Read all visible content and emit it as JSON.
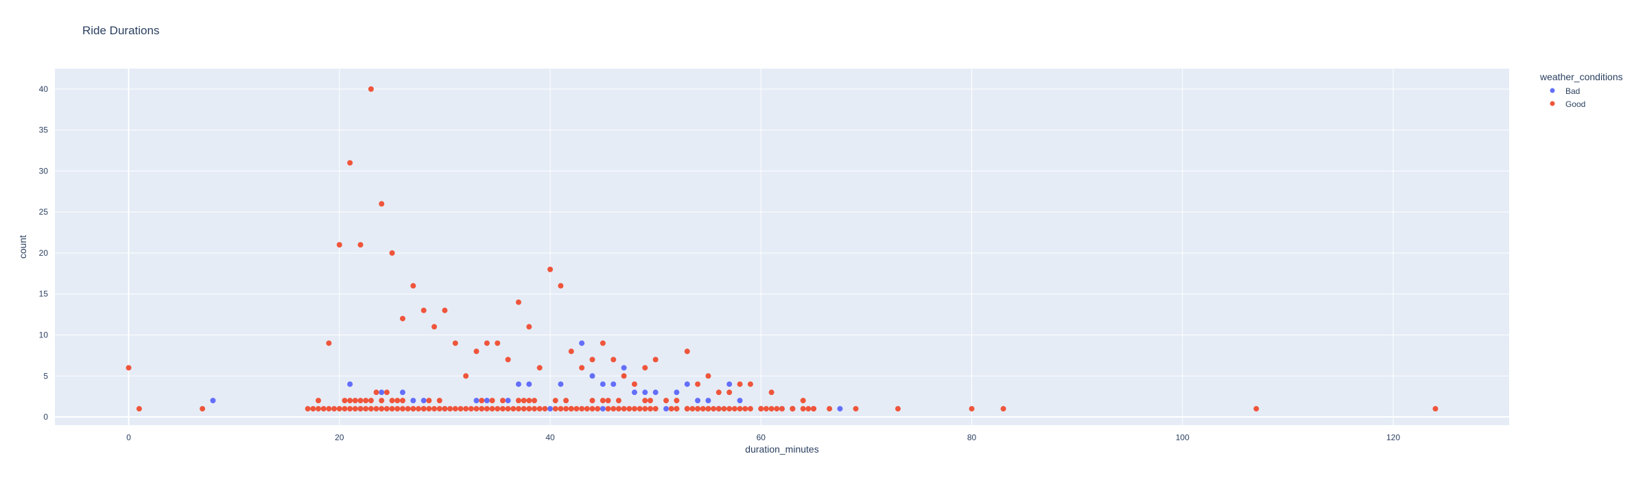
{
  "chart_data": {
    "type": "scatter",
    "title": "Ride Durations",
    "xlabel": "duration_minutes",
    "ylabel": "count",
    "xlim": [
      -7,
      131
    ],
    "ylim": [
      -1,
      42.5
    ],
    "x_ticks": [
      0,
      20,
      40,
      60,
      80,
      100,
      120
    ],
    "y_ticks": [
      0,
      5,
      10,
      15,
      20,
      25,
      30,
      35,
      40
    ],
    "grid": true,
    "legend": {
      "title": "weather_conditions",
      "placement": "top-right"
    },
    "colors": {
      "Bad": "#636efa",
      "Good": "#EF553B",
      "plot_bg": "#E5ECF6",
      "grid": "#ffffff",
      "text": "#2a3f5f"
    },
    "series": [
      {
        "name": "Bad",
        "points": [
          [
            8,
            2
          ],
          [
            21,
            4
          ],
          [
            22,
            1
          ],
          [
            24,
            3
          ],
          [
            26,
            3
          ],
          [
            27,
            2
          ],
          [
            28,
            2
          ],
          [
            30,
            1
          ],
          [
            33,
            2
          ],
          [
            34,
            2
          ],
          [
            36,
            2
          ],
          [
            37,
            4
          ],
          [
            38,
            4
          ],
          [
            41,
            4
          ],
          [
            43,
            9
          ],
          [
            44,
            5
          ],
          [
            45,
            4
          ],
          [
            46,
            4
          ],
          [
            47,
            6
          ],
          [
            48,
            3
          ],
          [
            49,
            3
          ],
          [
            50,
            3
          ],
          [
            52,
            3
          ],
          [
            53,
            4
          ],
          [
            54,
            2
          ],
          [
            55,
            2
          ],
          [
            56,
            1
          ],
          [
            57,
            4
          ],
          [
            58,
            2
          ],
          [
            62,
            1
          ],
          [
            67.5,
            1
          ],
          [
            40,
            1
          ],
          [
            51,
            1
          ],
          [
            45,
            1
          ]
        ]
      },
      {
        "name": "Good",
        "points": [
          [
            0,
            6
          ],
          [
            1,
            1
          ],
          [
            7,
            1
          ],
          [
            17,
            1
          ],
          [
            18,
            2
          ],
          [
            19,
            9
          ],
          [
            20,
            21
          ],
          [
            20.5,
            2
          ],
          [
            21,
            31
          ],
          [
            21.5,
            2
          ],
          [
            22,
            21
          ],
          [
            22.5,
            2
          ],
          [
            23,
            40
          ],
          [
            23.5,
            3
          ],
          [
            24,
            26
          ],
          [
            24.5,
            3
          ],
          [
            25,
            20
          ],
          [
            25.5,
            2
          ],
          [
            26,
            12
          ],
          [
            27,
            16
          ],
          [
            28,
            13
          ],
          [
            28.5,
            2
          ],
          [
            29,
            11
          ],
          [
            29.5,
            2
          ],
          [
            30,
            13
          ],
          [
            31,
            9
          ],
          [
            32,
            5
          ],
          [
            33,
            8
          ],
          [
            33.5,
            2
          ],
          [
            34,
            9
          ],
          [
            35,
            9
          ],
          [
            35.5,
            2
          ],
          [
            36,
            7
          ],
          [
            37,
            14
          ],
          [
            37.5,
            2
          ],
          [
            38,
            11
          ],
          [
            38.5,
            2
          ],
          [
            39,
            6
          ],
          [
            40,
            18
          ],
          [
            40.5,
            2
          ],
          [
            41,
            16
          ],
          [
            41.5,
            2
          ],
          [
            42,
            8
          ],
          [
            43,
            6
          ],
          [
            44,
            7
          ],
          [
            45,
            9
          ],
          [
            45.5,
            2
          ],
          [
            46,
            7
          ],
          [
            46.5,
            2
          ],
          [
            47,
            5
          ],
          [
            48,
            4
          ],
          [
            49,
            6
          ],
          [
            49.5,
            2
          ],
          [
            50,
            7
          ],
          [
            51,
            2
          ],
          [
            52,
            2
          ],
          [
            53,
            8
          ],
          [
            54,
            4
          ],
          [
            55,
            5
          ],
          [
            56,
            3
          ],
          [
            57,
            3
          ],
          [
            58,
            4
          ],
          [
            59,
            4
          ],
          [
            61,
            3
          ],
          [
            62,
            1
          ],
          [
            63,
            1
          ],
          [
            64,
            2
          ],
          [
            65,
            1
          ],
          [
            66.5,
            1
          ],
          [
            69,
            1
          ],
          [
            73,
            1
          ],
          [
            80,
            1
          ],
          [
            83,
            1
          ],
          [
            107,
            1
          ],
          [
            124,
            1
          ],
          [
            17.5,
            1
          ],
          [
            18,
            1
          ],
          [
            18.5,
            1
          ],
          [
            19,
            1
          ],
          [
            19.5,
            1
          ],
          [
            20,
            1
          ],
          [
            20.5,
            1
          ],
          [
            21,
            1
          ],
          [
            21.5,
            1
          ],
          [
            22,
            1
          ],
          [
            22.5,
            1
          ],
          [
            23,
            1
          ],
          [
            23.5,
            1
          ],
          [
            24,
            1
          ],
          [
            24.5,
            1
          ],
          [
            25,
            1
          ],
          [
            25.5,
            1
          ],
          [
            26,
            1
          ],
          [
            26.5,
            1
          ],
          [
            27,
            1
          ],
          [
            27.5,
            1
          ],
          [
            28,
            1
          ],
          [
            28.5,
            1
          ],
          [
            29,
            1
          ],
          [
            29.5,
            1
          ],
          [
            30,
            1
          ],
          [
            30.5,
            1
          ],
          [
            31,
            1
          ],
          [
            31.5,
            1
          ],
          [
            32,
            1
          ],
          [
            32.5,
            1
          ],
          [
            33,
            1
          ],
          [
            33.5,
            1
          ],
          [
            34,
            1
          ],
          [
            34.5,
            1
          ],
          [
            35,
            1
          ],
          [
            35.5,
            1
          ],
          [
            36,
            1
          ],
          [
            36.5,
            1
          ],
          [
            37,
            1
          ],
          [
            37.5,
            1
          ],
          [
            38,
            1
          ],
          [
            38.5,
            1
          ],
          [
            39,
            1
          ],
          [
            39.5,
            1
          ],
          [
            40.5,
            1
          ],
          [
            41,
            1
          ],
          [
            41.5,
            1
          ],
          [
            42,
            1
          ],
          [
            42.5,
            1
          ],
          [
            43,
            1
          ],
          [
            43.5,
            1
          ],
          [
            44,
            1
          ],
          [
            44.5,
            1
          ],
          [
            45.5,
            1
          ],
          [
            46,
            1
          ],
          [
            46.5,
            1
          ],
          [
            47,
            1
          ],
          [
            47.5,
            1
          ],
          [
            48,
            1
          ],
          [
            48.5,
            1
          ],
          [
            49,
            1
          ],
          [
            49.5,
            1
          ],
          [
            50,
            1
          ],
          [
            51.5,
            1
          ],
          [
            52,
            1
          ],
          [
            53,
            1
          ],
          [
            53.5,
            1
          ],
          [
            54,
            1
          ],
          [
            54.5,
            1
          ],
          [
            55,
            1
          ],
          [
            55.5,
            1
          ],
          [
            56.5,
            1
          ],
          [
            57,
            1
          ],
          [
            57.5,
            1
          ],
          [
            58,
            1
          ],
          [
            58.5,
            1
          ],
          [
            59,
            1
          ],
          [
            60,
            1
          ],
          [
            60.5,
            1
          ],
          [
            61,
            1
          ],
          [
            61.5,
            1
          ],
          [
            63,
            1
          ],
          [
            64,
            1
          ],
          [
            64.5,
            1
          ],
          [
            65,
            1
          ],
          [
            21,
            2
          ],
          [
            22,
            2
          ],
          [
            23,
            2
          ],
          [
            24,
            2
          ],
          [
            25,
            2
          ],
          [
            26,
            2
          ],
          [
            27,
            1
          ],
          [
            28,
            1
          ],
          [
            34.5,
            2
          ],
          [
            37,
            2
          ],
          [
            38,
            2
          ],
          [
            42,
            1
          ],
          [
            44,
            2
          ],
          [
            45,
            2
          ],
          [
            49,
            2
          ],
          [
            52,
            1
          ],
          [
            53,
            1
          ],
          [
            54,
            1
          ],
          [
            55,
            1
          ],
          [
            56,
            1
          ],
          [
            60,
            1
          ],
          [
            63,
            1
          ],
          [
            65,
            1
          ]
        ]
      }
    ]
  }
}
